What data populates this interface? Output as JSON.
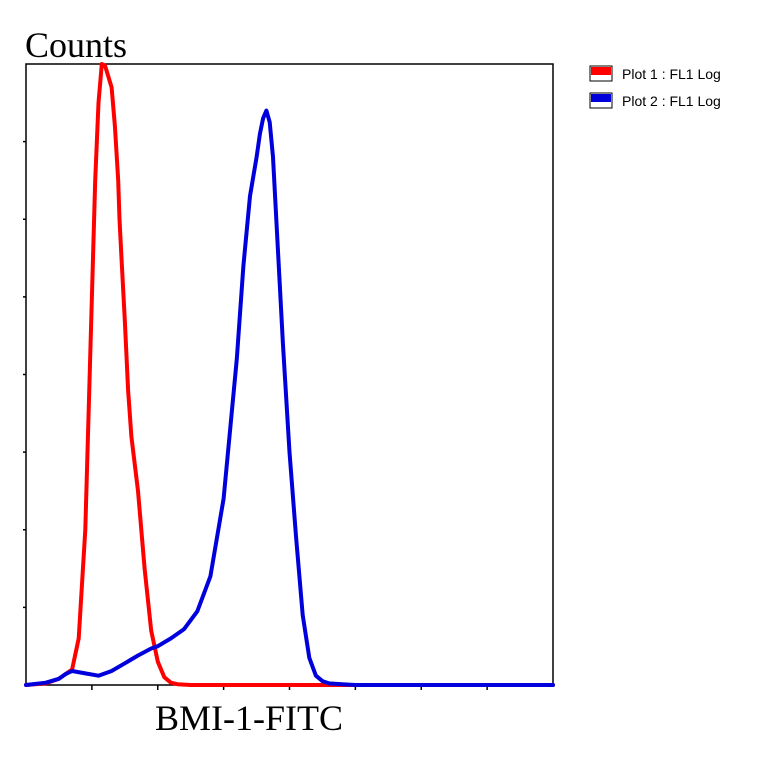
{
  "chart_data": {
    "type": "line",
    "title": "",
    "ylabel": "Counts",
    "xlabel": "BMI-1-FITC",
    "xlim": [
      0,
      8
    ],
    "ylim": [
      0,
      8
    ],
    "x_scale": "linear",
    "grid": false,
    "legend_placement": "outside-top-right",
    "series": [
      {
        "name": "Plot 1 : FL1 Log",
        "color": "#ff0000",
        "x": [
          0,
          0.3,
          0.5,
          0.7,
          0.8,
          0.9,
          1.0,
          1.05,
          1.1,
          1.15,
          1.2,
          1.3,
          1.35,
          1.4,
          1.42,
          1.45,
          1.5,
          1.55,
          1.6,
          1.7,
          1.8,
          1.9,
          2.0,
          2.1,
          2.2,
          2.3,
          2.5,
          3.0,
          4.0,
          5.0,
          6.0,
          7.0,
          8.0
        ],
        "y": [
          0,
          0.02,
          0.08,
          0.2,
          0.6,
          2.0,
          5.0,
          6.5,
          7.5,
          8.0,
          7.98,
          7.7,
          7.2,
          6.5,
          6.0,
          5.5,
          4.7,
          3.8,
          3.2,
          2.5,
          1.5,
          0.7,
          0.3,
          0.1,
          0.03,
          0.01,
          0,
          0,
          0,
          0,
          0,
          0,
          0
        ]
      },
      {
        "name": "Plot 2 : FL1 Log",
        "color": "#0000dd",
        "x": [
          0,
          0.3,
          0.5,
          0.6,
          0.7,
          0.9,
          1.1,
          1.3,
          1.5,
          1.7,
          1.9,
          2.0,
          2.2,
          2.4,
          2.6,
          2.8,
          3.0,
          3.2,
          3.3,
          3.4,
          3.5,
          3.55,
          3.6,
          3.65,
          3.7,
          3.75,
          3.8,
          3.9,
          4.0,
          4.1,
          4.2,
          4.3,
          4.4,
          4.5,
          4.6,
          4.8,
          5.0,
          6.0,
          7.0,
          8.0
        ],
        "y": [
          0,
          0.03,
          0.08,
          0.14,
          0.18,
          0.15,
          0.12,
          0.18,
          0.28,
          0.38,
          0.47,
          0.5,
          0.6,
          0.72,
          0.95,
          1.4,
          2.4,
          4.2,
          5.4,
          6.3,
          6.8,
          7.1,
          7.3,
          7.4,
          7.25,
          6.8,
          6.0,
          4.4,
          3.0,
          1.9,
          0.9,
          0.35,
          0.12,
          0.05,
          0.02,
          0.01,
          0,
          0,
          0,
          0
        ]
      }
    ]
  }
}
